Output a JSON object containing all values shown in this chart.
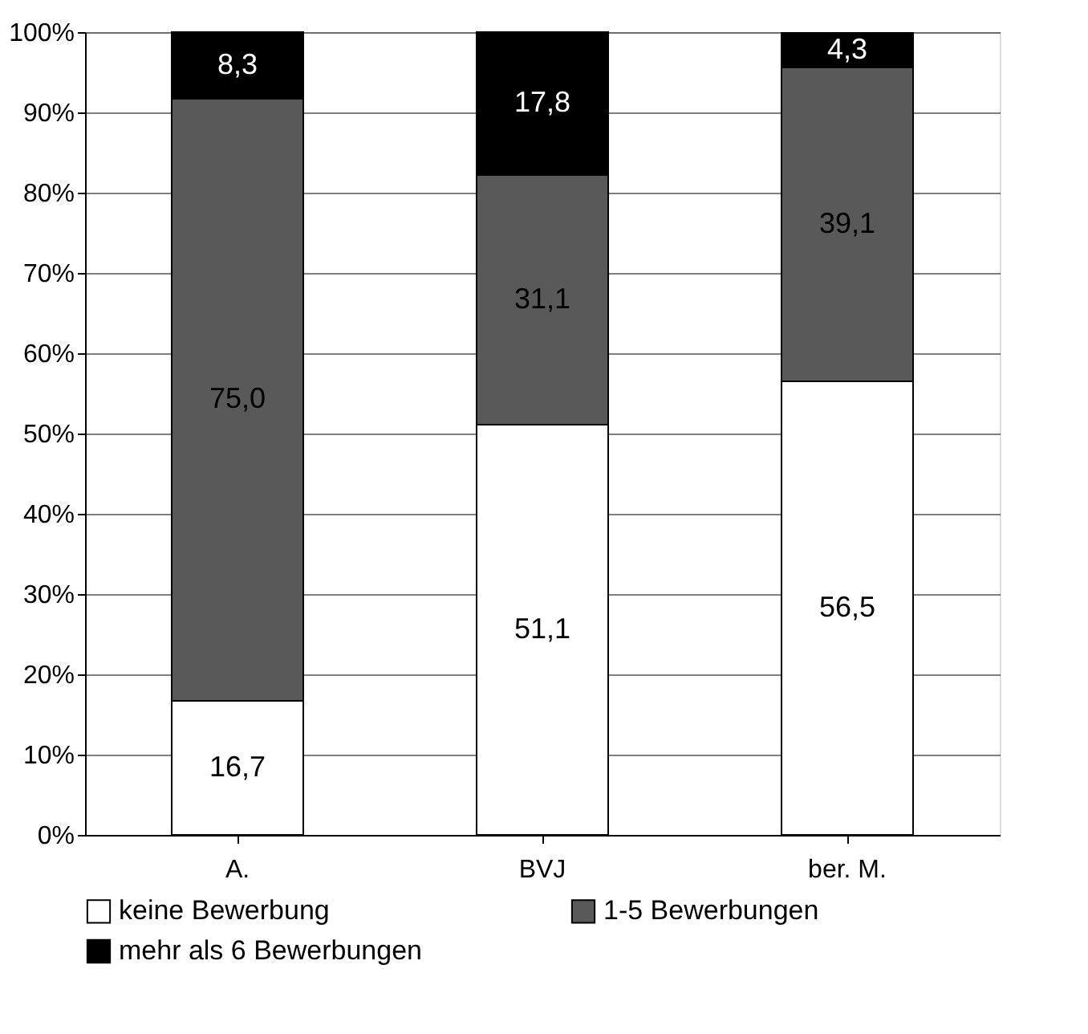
{
  "chart_data": {
    "type": "bar",
    "stacked": true,
    "categories": [
      "A.",
      "BVJ",
      "ber. M."
    ],
    "series": [
      {
        "name": "keine Bewerbung",
        "color": "#ffffff",
        "values": [
          16.7,
          51.1,
          56.5
        ],
        "value_labels": [
          "16,7",
          "51,1",
          "56,5"
        ]
      },
      {
        "name": "1-5 Bewerbungen",
        "color": "#595959",
        "values": [
          75.0,
          31.1,
          39.1
        ],
        "value_labels": [
          "75,0",
          "31,1",
          "39,1"
        ]
      },
      {
        "name": "mehr als 6 Bewerbungen",
        "color": "#000000",
        "values": [
          8.3,
          17.8,
          4.3
        ],
        "value_labels": [
          "8,3",
          "17,8",
          "4,3"
        ]
      }
    ],
    "ylim": [
      0,
      100
    ],
    "yticks": [
      {
        "value": 0,
        "label": "0%"
      },
      {
        "value": 10,
        "label": "10%"
      },
      {
        "value": 20,
        "label": "20%"
      },
      {
        "value": 30,
        "label": "30%"
      },
      {
        "value": 40,
        "label": "40%"
      },
      {
        "value": 50,
        "label": "50%"
      },
      {
        "value": 60,
        "label": "60%"
      },
      {
        "value": 70,
        "label": "70%"
      },
      {
        "value": 80,
        "label": "80%"
      },
      {
        "value": 90,
        "label": "90%"
      },
      {
        "value": 100,
        "label": "100%"
      }
    ],
    "grid": "y",
    "legend": "bottom"
  }
}
